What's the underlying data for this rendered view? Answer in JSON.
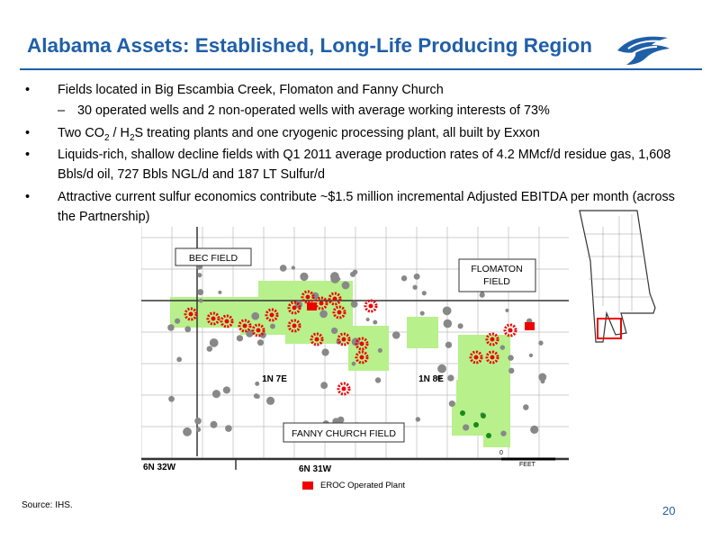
{
  "header": {
    "title": "Alabama Assets: Established, Long-Life Producing Region"
  },
  "bullets": [
    {
      "text": "Fields located in Big Escambia Creek, Flomaton and Fanny Church"
    },
    {
      "text": "30 operated wells and 2 non-operated wells with average working interests of 73%",
      "sub": true
    },
    {
      "parts": [
        "Two CO",
        "2",
        " / H",
        "2",
        "S treating plants and one cryogenic processing plant, all built by Exxon"
      ]
    },
    {
      "text": "Liquids-rich, shallow decline fields with Q1 2011 average production rates of 4.2 MMcf/d residue gas, 1,608 Bbls/d oil, 727 Bbls NGL/d and 187 LT Sulfur/d"
    },
    {
      "text": "Attractive current sulfur economics contribute ~$1.5 million incremental Adjusted EBITDA per month (across the Partnership)"
    }
  ],
  "map": {
    "labels": {
      "bec": "BEC FIELD",
      "flomaton": [
        "FLOMATON",
        "FIELD"
      ],
      "twp1": "1N 7E",
      "twp2": "1N 8E",
      "fanny": "FANNY CHURCH FIELD",
      "twp3": "6N 32W",
      "twp4": "6N 31W",
      "scale_zero": "0",
      "scale_unit": "FEET"
    },
    "legend": "EROC Operated Plant"
  },
  "footer": {
    "source": "Source: IHS.",
    "page": "20"
  }
}
